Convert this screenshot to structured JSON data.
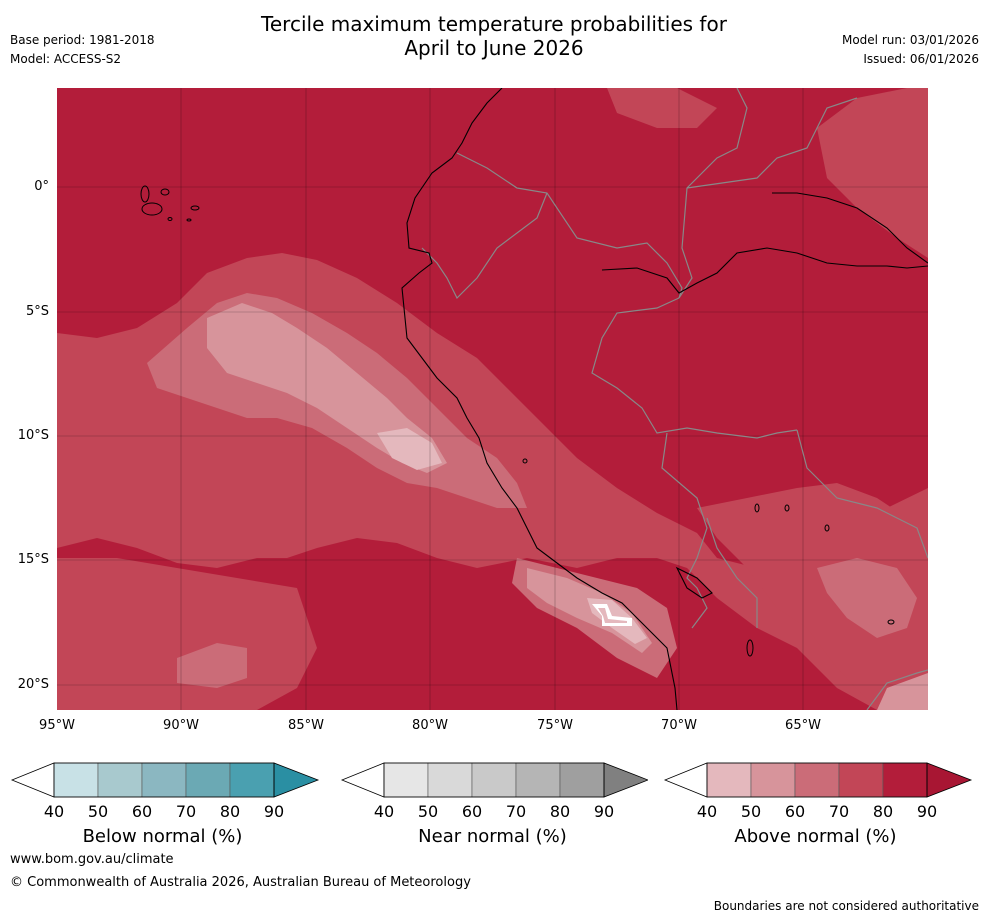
{
  "header": {
    "title_line1": "Tercile maximum temperature probabilities for",
    "title_line2": "April to June 2026",
    "base_period": "Base period: 1981-2018",
    "model": "Model: ACCESS-S2",
    "model_run": "Model run: 03/01/2026",
    "issued": "Issued: 06/01/2026"
  },
  "map": {
    "lat_labels": [
      "0°",
      "5°S",
      "10°S",
      "15°S",
      "20°S"
    ],
    "lon_labels": [
      "95°W",
      "90°W",
      "85°W",
      "80°W",
      "75°W",
      "70°W",
      "65°W"
    ],
    "colors": {
      "above_90": "#b31d3a",
      "above_80": "#c24657",
      "above_70": "#cb6c78",
      "above_60": "#d7949b",
      "above_50": "#e4b8bd",
      "white": "#ffffff"
    }
  },
  "colorbars": {
    "below": {
      "title": "Below normal (%)",
      "ticks": [
        "40",
        "50",
        "60",
        "70",
        "80",
        "90"
      ],
      "colors": [
        "#ffffff",
        "#c8e1e6",
        "#a8c9ce",
        "#8bb7c1",
        "#6ba9b4",
        "#4aa0b0",
        "#2a8fa3"
      ]
    },
    "near": {
      "title": "Near normal (%)",
      "ticks": [
        "40",
        "50",
        "60",
        "70",
        "80",
        "90"
      ],
      "colors": [
        "#ffffff",
        "#e6e6e6",
        "#d9d9d9",
        "#c9c9c9",
        "#b5b5b5",
        "#9f9f9f",
        "#808080"
      ]
    },
    "above": {
      "title": "Above normal (%)",
      "ticks": [
        "40",
        "50",
        "60",
        "70",
        "80",
        "90"
      ],
      "colors": [
        "#ffffff",
        "#e4b8bd",
        "#d7949b",
        "#cb6c78",
        "#c24657",
        "#b31d3a",
        "#a81633"
      ]
    }
  },
  "footer": {
    "url": "www.bom.gov.au/climate",
    "copyright": "© Commonwealth of Australia 2026, Australian Bureau of Meteorology",
    "disclaimer": "Boundaries are not considered authoritative"
  }
}
